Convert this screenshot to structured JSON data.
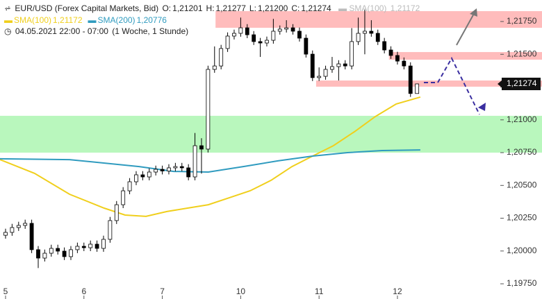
{
  "chart_data": {
    "type": "candlestick",
    "title": "EUR/USD (Forex Capital Markets, Bid)",
    "quote": [
      {
        "name": "O:",
        "value": 1.21201,
        "value_label": "1,21201"
      },
      {
        "name": "H:",
        "value": 1.21277,
        "value_label": "1,21277"
      },
      {
        "name": "L:",
        "value": 1.212,
        "value_label": "1,21200"
      },
      {
        "name": "C:",
        "value": 1.21274,
        "value_label": "1,21274"
      }
    ],
    "period": "04.05.2021 22:00 - 07:00",
    "interval": "(1 Woche, 1 Stunde)",
    "candles": {
      "up_color": "#ffffff",
      "down_color": "#000000",
      "edge_color": "#000000",
      "x": [
        0,
        2,
        4,
        6,
        8,
        10,
        12,
        14,
        16,
        18,
        20,
        22,
        24,
        26,
        28,
        30,
        32,
        34,
        36,
        38,
        40,
        42,
        44,
        46,
        48,
        50,
        52,
        54,
        56,
        58,
        60,
        62,
        64,
        66,
        68,
        70,
        72,
        74,
        76,
        78,
        80,
        82,
        84,
        86,
        88,
        90,
        92,
        94,
        96,
        98,
        100,
        102,
        104,
        106,
        108,
        110,
        112,
        114,
        116,
        118,
        120,
        122,
        124,
        126
      ],
      "open": [
        1.2012,
        1.20142,
        1.20179,
        1.20195,
        1.20211,
        1.2001,
        1.19946,
        1.19983,
        1.2002,
        1.19999,
        1.19957,
        1.2001,
        1.20036,
        1.20025,
        1.20052,
        1.2002,
        1.20089,
        1.20232,
        1.20353,
        1.20459,
        1.20528,
        1.20581,
        1.20565,
        1.20602,
        1.20623,
        1.2061,
        1.20634,
        1.20644,
        1.20634,
        1.20565,
        1.20803,
        1.20777,
        1.21385,
        1.21411,
        1.21544,
        1.21639,
        1.2166,
        1.21702,
        1.21649,
        1.21597,
        1.21586,
        1.21607,
        1.21676,
        1.21692,
        1.21702,
        1.21676,
        1.21623,
        1.21501,
        1.21322,
        1.21332,
        1.21385,
        1.21406,
        1.21427,
        1.21411,
        1.21597,
        1.2166,
        1.21676,
        1.2166,
        1.21597,
        1.21533,
        1.21491,
        1.21448,
        1.21411,
        1.21201
      ],
      "high": [
        1.2017,
        1.20207,
        1.20223,
        1.20239,
        1.20239,
        1.20038,
        1.20011,
        1.20048,
        1.20048,
        1.20027,
        1.20038,
        1.20064,
        1.20064,
        1.2008,
        1.2008,
        1.20117,
        1.2026,
        1.20381,
        1.20487,
        1.20556,
        1.20609,
        1.20609,
        1.2063,
        1.20651,
        1.20651,
        1.20662,
        1.20672,
        1.20672,
        1.20662,
        1.209,
        1.2086,
        1.21413,
        1.2156,
        1.21572,
        1.21667,
        1.21688,
        1.2178,
        1.2173,
        1.21677,
        1.21625,
        1.21635,
        1.2177,
        1.2172,
        1.2176,
        1.2173,
        1.21704,
        1.21651,
        1.21529,
        1.214,
        1.21413,
        1.2148,
        1.21455,
        1.21455,
        1.217,
        1.2178,
        1.2184,
        1.2176,
        1.21688,
        1.21625,
        1.21561,
        1.21519,
        1.21476,
        1.21439,
        1.21277
      ],
      "low": [
        1.20094,
        1.20116,
        1.20153,
        1.20169,
        1.19984,
        1.1987,
        1.1992,
        1.19957,
        1.19973,
        1.19931,
        1.19931,
        1.19984,
        1.19999,
        1.19999,
        1.19994,
        1.19994,
        1.20063,
        1.20206,
        1.20327,
        1.20433,
        1.20502,
        1.20539,
        1.20539,
        1.20576,
        1.20584,
        1.20584,
        1.20608,
        1.20608,
        1.20539,
        1.20539,
        1.2059,
        1.20751,
        1.21359,
        1.21385,
        1.21518,
        1.21613,
        1.21634,
        1.21623,
        1.21571,
        1.2148,
        1.2156,
        1.21581,
        1.2165,
        1.21666,
        1.2165,
        1.21597,
        1.21475,
        1.21296,
        1.21296,
        1.21306,
        1.21359,
        1.213,
        1.21385,
        1.21385,
        1.21571,
        1.215,
        1.21634,
        1.21571,
        1.21507,
        1.21465,
        1.21422,
        1.21385,
        1.21175,
        1.212
      ],
      "close": [
        1.20142,
        1.20179,
        1.20195,
        1.20211,
        1.2001,
        1.19946,
        1.19983,
        1.2002,
        1.19999,
        1.19957,
        1.2001,
        1.20036,
        1.20025,
        1.20052,
        1.2002,
        1.20089,
        1.20232,
        1.20353,
        1.20459,
        1.20528,
        1.20581,
        1.20565,
        1.20602,
        1.20623,
        1.2061,
        1.20634,
        1.20644,
        1.20634,
        1.20565,
        1.20803,
        1.20777,
        1.21385,
        1.21411,
        1.21544,
        1.21639,
        1.2166,
        1.21702,
        1.21649,
        1.21597,
        1.21586,
        1.21607,
        1.21676,
        1.21692,
        1.21702,
        1.21676,
        1.21623,
        1.21501,
        1.21322,
        1.21332,
        1.21385,
        1.21406,
        1.21427,
        1.21411,
        1.21597,
        1.2166,
        1.21676,
        1.2166,
        1.21597,
        1.21533,
        1.21491,
        1.21448,
        1.21411,
        1.21201,
        1.21274
      ]
    },
    "series": [
      {
        "name": "SMA(100)",
        "color": "#f0cf1c",
        "last_value": 1.21172,
        "last_label": "1,21172",
        "x": [
          -1.7,
          8.9,
          19.6,
          30.2,
          36.6,
          43,
          49.4,
          55.7,
          62.1,
          68.5,
          74.9,
          81.3,
          87.7,
          94,
          100.4,
          106.8,
          113.2,
          119.6,
          127
        ],
        "values": [
          1.20697,
          1.20592,
          1.20433,
          1.20327,
          1.20274,
          1.20264,
          1.20301,
          1.20327,
          1.20353,
          1.20406,
          1.20459,
          1.20539,
          1.20644,
          1.20724,
          1.20803,
          1.20909,
          1.21025,
          1.21121,
          1.21174
        ]
      },
      {
        "name": "SMA(200)",
        "color": "#2f9bbf",
        "last_value": 1.20776,
        "last_label": "1,20776",
        "x": [
          -1.7,
          19.6,
          40.9,
          51.5,
          62.1,
          72.8,
          83.4,
          94,
          104.7,
          115.3,
          127
        ],
        "values": [
          1.20703,
          1.20697,
          1.20644,
          1.20607,
          1.20602,
          1.20644,
          1.20687,
          1.20724,
          1.2075,
          1.20766,
          1.20771
        ]
      }
    ],
    "zones": [
      {
        "color": "#ffbcbc",
        "from": 1.21702,
        "to": 1.21829,
        "x_start": 64.3
      },
      {
        "color": "#ffbcbc",
        "from": 1.21459,
        "to": 1.21517,
        "x_start": 117.4
      },
      {
        "color": "#ffbcbc",
        "from": 1.21253,
        "to": 1.213,
        "x_start": 95.1
      },
      {
        "color": "#b9f7bd",
        "from": 1.2075,
        "to": 1.21031,
        "x_start": -1.7
      }
    ],
    "current": {
      "value": 1.21274,
      "label": "1,21274"
    },
    "xlim": [
      -1.7,
      151.5
    ],
    "xticks": [
      {
        "value": 0,
        "label": "5"
      },
      {
        "value": 24,
        "label": "6"
      },
      {
        "value": 48,
        "label": "7"
      },
      {
        "value": 72,
        "label": "10"
      },
      {
        "value": 96,
        "label": "11"
      },
      {
        "value": 120,
        "label": "12"
      }
    ],
    "ylim": [
      1.19634,
      1.21914
    ],
    "yticks": [
      {
        "value": 1.1975,
        "label": "1,19750"
      },
      {
        "value": 1.2,
        "label": "1,20000"
      },
      {
        "value": 1.2025,
        "label": "1,20250"
      },
      {
        "value": 1.205,
        "label": "1,20500"
      },
      {
        "value": 1.2075,
        "label": "1,20750"
      },
      {
        "value": 1.21,
        "label": "1,21000"
      },
      {
        "value": 1.2125,
        "label": "1,21250"
      },
      {
        "value": 1.215,
        "label": "1,21500"
      },
      {
        "value": 1.2175,
        "label": "1,21750"
      }
    ]
  }
}
